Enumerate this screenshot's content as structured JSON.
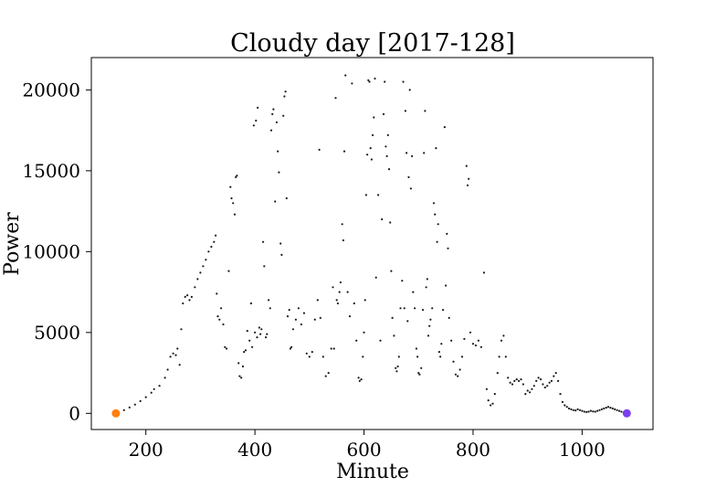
{
  "chart_data": {
    "type": "scatter",
    "title": "Cloudy day [2017-128]",
    "xlabel": "Minute",
    "ylabel": "Power",
    "xlim": [
      100,
      1130
    ],
    "ylim": [
      -1000,
      22000
    ],
    "xticks": [
      200,
      400,
      600,
      800,
      1000
    ],
    "yticks": [
      0,
      5000,
      10000,
      15000,
      20000
    ],
    "grid": false,
    "colors": {
      "points": "#1a1a1a",
      "start_marker": "#ff7f0e",
      "end_marker": "#7b3ff2",
      "axes": "#000000"
    },
    "series": [
      {
        "points": [
          [
            145,
            0
          ],
          [
            150,
            80
          ],
          [
            160,
            200
          ],
          [
            170,
            360
          ],
          [
            180,
            540
          ],
          [
            190,
            760
          ],
          [
            200,
            1000
          ],
          [
            210,
            1280
          ],
          [
            215,
            1500
          ],
          [
            225,
            1700
          ],
          [
            235,
            2200
          ],
          [
            240,
            2700
          ],
          [
            245,
            3500
          ],
          [
            250,
            3700
          ],
          [
            255,
            3600
          ],
          [
            258,
            4000
          ],
          [
            262,
            3000
          ],
          [
            265,
            5200
          ],
          [
            268,
            6800
          ],
          [
            272,
            7200
          ],
          [
            276,
            7300
          ],
          [
            280,
            7000
          ],
          [
            284,
            7200
          ],
          [
            290,
            7800
          ],
          [
            295,
            8300
          ],
          [
            300,
            8700
          ],
          [
            305,
            9100
          ],
          [
            310,
            9500
          ],
          [
            315,
            10000
          ],
          [
            320,
            10300
          ],
          [
            325,
            10600
          ],
          [
            328,
            11000
          ],
          [
            330,
            7400
          ],
          [
            332,
            6000
          ],
          [
            335,
            5800
          ],
          [
            338,
            6500
          ],
          [
            342,
            5500
          ],
          [
            345,
            4100
          ],
          [
            348,
            4000
          ],
          [
            352,
            8800
          ],
          [
            355,
            14000
          ],
          [
            357,
            13300
          ],
          [
            360,
            13000
          ],
          [
            363,
            12300
          ],
          [
            365,
            14600
          ],
          [
            367,
            14700
          ],
          [
            370,
            3100
          ],
          [
            372,
            2300
          ],
          [
            375,
            2200
          ],
          [
            378,
            2900
          ],
          [
            380,
            3800
          ],
          [
            383,
            3900
          ],
          [
            386,
            5100
          ],
          [
            390,
            4500
          ],
          [
            393,
            6800
          ],
          [
            395,
            4100
          ],
          [
            398,
            17800
          ],
          [
            400,
            5000
          ],
          [
            402,
            18100
          ],
          [
            404,
            4700
          ],
          [
            405,
            18900
          ],
          [
            408,
            5300
          ],
          [
            410,
            4900
          ],
          [
            412,
            5200
          ],
          [
            415,
            10600
          ],
          [
            417,
            9100
          ],
          [
            420,
            4700
          ],
          [
            422,
            4900
          ],
          [
            425,
            7000
          ],
          [
            428,
            6500
          ],
          [
            430,
            17500
          ],
          [
            432,
            18500
          ],
          [
            434,
            18800
          ],
          [
            437,
            13100
          ],
          [
            440,
            18000
          ],
          [
            442,
            16200
          ],
          [
            444,
            14900
          ],
          [
            447,
            10500
          ],
          [
            449,
            9800
          ],
          [
            452,
            18400
          ],
          [
            454,
            19600
          ],
          [
            456,
            19900
          ],
          [
            458,
            13300
          ],
          [
            460,
            6000
          ],
          [
            463,
            6400
          ],
          [
            465,
            4000
          ],
          [
            467,
            4100
          ],
          [
            470,
            5200
          ],
          [
            475,
            5800
          ],
          [
            480,
            6500
          ],
          [
            485,
            5500
          ],
          [
            490,
            6200
          ],
          [
            495,
            3700
          ],
          [
            500,
            3500
          ],
          [
            505,
            3800
          ],
          [
            510,
            5800
          ],
          [
            515,
            7000
          ],
          [
            518,
            16300
          ],
          [
            520,
            5900
          ],
          [
            525,
            3500
          ],
          [
            530,
            2300
          ],
          [
            535,
            2500
          ],
          [
            540,
            4000
          ],
          [
            543,
            7800
          ],
          [
            545,
            4000
          ],
          [
            548,
            19500
          ],
          [
            550,
            7000
          ],
          [
            552,
            6800
          ],
          [
            555,
            7500
          ],
          [
            557,
            8100
          ],
          [
            560,
            11700
          ],
          [
            562,
            10700
          ],
          [
            564,
            16200
          ],
          [
            566,
            20900
          ],
          [
            570,
            7500
          ],
          [
            574,
            6000
          ],
          [
            578,
            20400
          ],
          [
            582,
            6800
          ],
          [
            586,
            4500
          ],
          [
            590,
            2200
          ],
          [
            592,
            2000
          ],
          [
            595,
            2100
          ],
          [
            598,
            3500
          ],
          [
            600,
            5000
          ],
          [
            602,
            7000
          ],
          [
            604,
            13500
          ],
          [
            606,
            16000
          ],
          [
            608,
            20600
          ],
          [
            610,
            20500
          ],
          [
            612,
            16400
          ],
          [
            614,
            15700
          ],
          [
            616,
            17200
          ],
          [
            618,
            18300
          ],
          [
            620,
            20700
          ],
          [
            622,
            8400
          ],
          [
            626,
            13500
          ],
          [
            630,
            4500
          ],
          [
            633,
            12000
          ],
          [
            636,
            18500
          ],
          [
            638,
            20500
          ],
          [
            640,
            16500
          ],
          [
            642,
            15900
          ],
          [
            644,
            17200
          ],
          [
            646,
            15100
          ],
          [
            648,
            11800
          ],
          [
            650,
            8800
          ],
          [
            652,
            5900
          ],
          [
            655,
            4800
          ],
          [
            658,
            2800
          ],
          [
            660,
            2600
          ],
          [
            662,
            2900
          ],
          [
            664,
            3500
          ],
          [
            667,
            6500
          ],
          [
            670,
            8200
          ],
          [
            672,
            20500
          ],
          [
            674,
            6500
          ],
          [
            676,
            18700
          ],
          [
            678,
            16100
          ],
          [
            680,
            5700
          ],
          [
            682,
            14600
          ],
          [
            684,
            20000
          ],
          [
            686,
            13900
          ],
          [
            688,
            15900
          ],
          [
            690,
            7500
          ],
          [
            693,
            6500
          ],
          [
            696,
            4000
          ],
          [
            698,
            3500
          ],
          [
            700,
            2500
          ],
          [
            702,
            2400
          ],
          [
            705,
            2800
          ],
          [
            708,
            6400
          ],
          [
            710,
            16100
          ],
          [
            712,
            18700
          ],
          [
            714,
            7800
          ],
          [
            716,
            8300
          ],
          [
            718,
            4800
          ],
          [
            720,
            5400
          ],
          [
            722,
            5800
          ],
          [
            725,
            6500
          ],
          [
            728,
            13000
          ],
          [
            730,
            12300
          ],
          [
            732,
            16400
          ],
          [
            734,
            10600
          ],
          [
            736,
            11700
          ],
          [
            738,
            3800
          ],
          [
            740,
            3500
          ],
          [
            742,
            4300
          ],
          [
            745,
            6400
          ],
          [
            748,
            17700
          ],
          [
            750,
            7900
          ],
          [
            752,
            11100
          ],
          [
            754,
            10200
          ],
          [
            756,
            5900
          ],
          [
            760,
            4500
          ],
          [
            764,
            3200
          ],
          [
            768,
            2400
          ],
          [
            772,
            2300
          ],
          [
            776,
            2700
          ],
          [
            780,
            3500
          ],
          [
            784,
            4600
          ],
          [
            788,
            15300
          ],
          [
            790,
            14100
          ],
          [
            792,
            14500
          ],
          [
            795,
            5000
          ],
          [
            800,
            4300
          ],
          [
            805,
            4200
          ],
          [
            810,
            4500
          ],
          [
            815,
            4100
          ],
          [
            820,
            8700
          ],
          [
            825,
            1500
          ],
          [
            828,
            800
          ],
          [
            832,
            500
          ],
          [
            836,
            600
          ],
          [
            840,
            1200
          ],
          [
            845,
            2500
          ],
          [
            848,
            3500
          ],
          [
            852,
            4500
          ],
          [
            856,
            4800
          ],
          [
            860,
            3500
          ],
          [
            864,
            2200
          ],
          [
            868,
            1900
          ],
          [
            872,
            1800
          ],
          [
            876,
            2000
          ],
          [
            880,
            2100
          ],
          [
            884,
            2000
          ],
          [
            888,
            2100
          ],
          [
            892,
            1800
          ],
          [
            896,
            1200
          ],
          [
            900,
            1400
          ],
          [
            904,
            1300
          ],
          [
            908,
            1500
          ],
          [
            912,
            1700
          ],
          [
            916,
            2000
          ],
          [
            920,
            2200
          ],
          [
            924,
            2100
          ],
          [
            928,
            1800
          ],
          [
            932,
            1600
          ],
          [
            936,
            1700
          ],
          [
            940,
            1900
          ],
          [
            944,
            2000
          ],
          [
            948,
            2300
          ],
          [
            952,
            2500
          ],
          [
            956,
            2000
          ],
          [
            960,
            1200
          ],
          [
            964,
            700
          ],
          [
            968,
            500
          ],
          [
            972,
            400
          ],
          [
            976,
            300
          ],
          [
            980,
            250
          ],
          [
            984,
            200
          ],
          [
            988,
            180
          ],
          [
            992,
            250
          ],
          [
            996,
            200
          ],
          [
            1000,
            150
          ],
          [
            1004,
            100
          ],
          [
            1008,
            80
          ],
          [
            1012,
            100
          ],
          [
            1016,
            150
          ],
          [
            1020,
            120
          ],
          [
            1024,
            100
          ],
          [
            1028,
            150
          ],
          [
            1032,
            200
          ],
          [
            1036,
            250
          ],
          [
            1040,
            300
          ],
          [
            1044,
            350
          ],
          [
            1048,
            400
          ],
          [
            1052,
            350
          ],
          [
            1056,
            300
          ],
          [
            1060,
            250
          ],
          [
            1064,
            200
          ],
          [
            1068,
            150
          ],
          [
            1072,
            100
          ],
          [
            1076,
            50
          ],
          [
            1080,
            0
          ]
        ]
      }
    ],
    "markers": [
      {
        "x": 145,
        "y": 0,
        "color": "#ff7f0e"
      },
      {
        "x": 1082,
        "y": 0,
        "color": "#7b3ff2"
      }
    ]
  }
}
